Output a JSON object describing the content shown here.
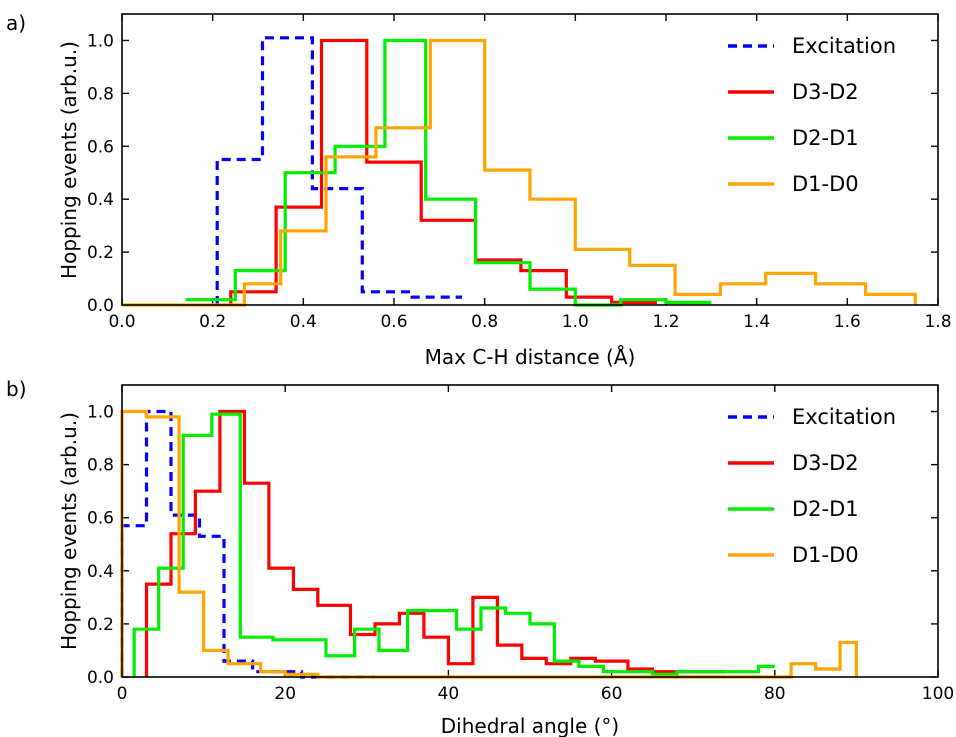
{
  "chart_data": [
    {
      "panel_label": "a)",
      "type": "line",
      "style": "step histogram",
      "xlabel": "Max C-H distance (Å)",
      "ylabel": "Hopping events (arb.u.)",
      "xlim": [
        0.0,
        1.8
      ],
      "ylim": [
        0.0,
        1.1
      ],
      "xticks": [
        "0.0",
        "0.2",
        "0.4",
        "0.6",
        "0.8",
        "1.0",
        "1.2",
        "1.4",
        "1.6",
        "1.8"
      ],
      "yticks": [
        "0.0",
        "0.2",
        "0.4",
        "0.6",
        "0.8",
        "1.0"
      ],
      "legend_position": "upper-right",
      "series": [
        {
          "name": "Excitation",
          "color": "#0000ff",
          "dash": true,
          "x": [
            0.21,
            0.21,
            0.31,
            0.31,
            0.42,
            0.42,
            0.53,
            0.53,
            0.64,
            0.64,
            0.75
          ],
          "y": [
            0.0,
            0.55,
            0.55,
            1.01,
            1.01,
            0.44,
            0.44,
            0.05,
            0.05,
            0.03,
            0.03
          ]
        },
        {
          "name": "D3-D2",
          "color": "#ff0000",
          "dash": false,
          "x": [
            0.24,
            0.24,
            0.34,
            0.34,
            0.44,
            0.44,
            0.54,
            0.54,
            0.66,
            0.66,
            0.78,
            0.78,
            0.88,
            0.88,
            0.98,
            0.98,
            1.08,
            1.08,
            1.18
          ],
          "y": [
            0.0,
            0.05,
            0.05,
            0.37,
            0.37,
            1.0,
            1.0,
            0.54,
            0.54,
            0.32,
            0.32,
            0.17,
            0.17,
            0.13,
            0.13,
            0.03,
            0.03,
            0.01,
            0.01
          ]
        },
        {
          "name": "D2-D1",
          "color": "#00ee00",
          "dash": false,
          "x": [
            0.14,
            0.25,
            0.25,
            0.36,
            0.36,
            0.47,
            0.47,
            0.58,
            0.58,
            0.67,
            0.67,
            0.78,
            0.78,
            0.9,
            0.9,
            1.0,
            1.0,
            1.1,
            1.1,
            1.2,
            1.2,
            1.3
          ],
          "y": [
            0.02,
            0.02,
            0.13,
            0.13,
            0.5,
            0.5,
            0.6,
            0.6,
            1.0,
            1.0,
            0.4,
            0.4,
            0.16,
            0.16,
            0.06,
            0.06,
            0.0,
            0.0,
            0.02,
            0.02,
            0.01,
            0.01
          ]
        },
        {
          "name": "D1-D0",
          "color": "#ffa500",
          "dash": false,
          "x": [
            0.0,
            0.27,
            0.27,
            0.35,
            0.35,
            0.45,
            0.45,
            0.56,
            0.56,
            0.68,
            0.68,
            0.8,
            0.8,
            0.9,
            0.9,
            1.0,
            1.0,
            1.12,
            1.12,
            1.22,
            1.22,
            1.32,
            1.32,
            1.42,
            1.42,
            1.53,
            1.53,
            1.64,
            1.64,
            1.75,
            1.75
          ],
          "y": [
            0.0,
            0.0,
            0.08,
            0.08,
            0.28,
            0.28,
            0.56,
            0.56,
            0.67,
            0.67,
            1.0,
            1.0,
            0.51,
            0.51,
            0.4,
            0.4,
            0.21,
            0.21,
            0.15,
            0.15,
            0.04,
            0.04,
            0.08,
            0.08,
            0.12,
            0.12,
            0.08,
            0.08,
            0.04,
            0.04,
            0.0
          ]
        }
      ]
    },
    {
      "panel_label": "b)",
      "type": "line",
      "style": "step histogram",
      "xlabel": "Dihedral angle (°)",
      "ylabel": "Hopping events (arb.u.)",
      "xlim": [
        0,
        100
      ],
      "ylim": [
        0.0,
        1.1
      ],
      "xticks": [
        "0",
        "20",
        "40",
        "60",
        "80",
        "100"
      ],
      "yticks": [
        "0.0",
        "0.2",
        "0.4",
        "0.6",
        "0.8",
        "1.0"
      ],
      "legend_position": "upper-right",
      "series": [
        {
          "name": "Excitation",
          "color": "#0000ff",
          "dash": true,
          "x": [
            0,
            0,
            3,
            3,
            6,
            6,
            9.5,
            9.5,
            12.5,
            12.5,
            16,
            16,
            19,
            19,
            22,
            22,
            25,
            25,
            31
          ],
          "y": [
            0.0,
            0.57,
            0.57,
            1.0,
            1.0,
            0.61,
            0.61,
            0.53,
            0.53,
            0.06,
            0.06,
            0.02,
            0.02,
            0.02,
            0.02,
            0.0,
            0.0,
            0.0,
            0.0
          ]
        },
        {
          "name": "D3-D2",
          "color": "#ff0000",
          "dash": false,
          "x": [
            3,
            3,
            6,
            6,
            9,
            9,
            12,
            12,
            15,
            15,
            18,
            18,
            21,
            21,
            24,
            24,
            28,
            28,
            31,
            31,
            34,
            34,
            37,
            37,
            40,
            40,
            43,
            43,
            46,
            46,
            49,
            49,
            52,
            52,
            55,
            55,
            58,
            58,
            62,
            62,
            65,
            65,
            74
          ],
          "y": [
            0.0,
            0.35,
            0.35,
            0.54,
            0.54,
            0.7,
            0.7,
            1.0,
            1.0,
            0.73,
            0.73,
            0.41,
            0.41,
            0.33,
            0.33,
            0.27,
            0.27,
            0.16,
            0.16,
            0.2,
            0.2,
            0.24,
            0.24,
            0.15,
            0.15,
            0.05,
            0.05,
            0.3,
            0.3,
            0.12,
            0.12,
            0.07,
            0.07,
            0.05,
            0.05,
            0.07,
            0.07,
            0.06,
            0.06,
            0.03,
            0.03,
            0.02,
            0.02
          ]
        },
        {
          "name": "D2-D1",
          "color": "#00ee00",
          "dash": false,
          "x": [
            1.5,
            1.5,
            4.5,
            4.5,
            7.5,
            7.5,
            11,
            11,
            14.5,
            14.5,
            16,
            16,
            18.5,
            18.5,
            25,
            25,
            28.5,
            28.5,
            31.5,
            31.5,
            35,
            35,
            38,
            38,
            41,
            41,
            44,
            44,
            47,
            47,
            50,
            50,
            53,
            53,
            56,
            56,
            59,
            59,
            62,
            62,
            65,
            65,
            68,
            68,
            78,
            78,
            80
          ],
          "y": [
            0.0,
            0.18,
            0.18,
            0.41,
            0.41,
            0.91,
            0.91,
            0.99,
            0.99,
            0.15,
            0.15,
            0.15,
            0.15,
            0.14,
            0.14,
            0.08,
            0.08,
            0.18,
            0.18,
            0.1,
            0.1,
            0.25,
            0.25,
            0.25,
            0.25,
            0.18,
            0.18,
            0.26,
            0.26,
            0.24,
            0.24,
            0.2,
            0.2,
            0.06,
            0.06,
            0.04,
            0.04,
            0.02,
            0.02,
            0.02,
            0.02,
            0.01,
            0.01,
            0.02,
            0.02,
            0.04,
            0.04
          ]
        },
        {
          "name": "D1-D0",
          "color": "#ffa500",
          "dash": false,
          "x": [
            0,
            0,
            3,
            3,
            7,
            7,
            10,
            10,
            13,
            13,
            17,
            17,
            20,
            20,
            24,
            24,
            82,
            82,
            85,
            85,
            88,
            88,
            90,
            90
          ],
          "y": [
            0.0,
            1.0,
            1.0,
            0.98,
            0.98,
            0.32,
            0.32,
            0.1,
            0.1,
            0.05,
            0.05,
            0.02,
            0.02,
            0.01,
            0.01,
            0.0,
            0.0,
            0.05,
            0.05,
            0.03,
            0.03,
            0.13,
            0.13,
            0.0
          ]
        }
      ]
    }
  ]
}
